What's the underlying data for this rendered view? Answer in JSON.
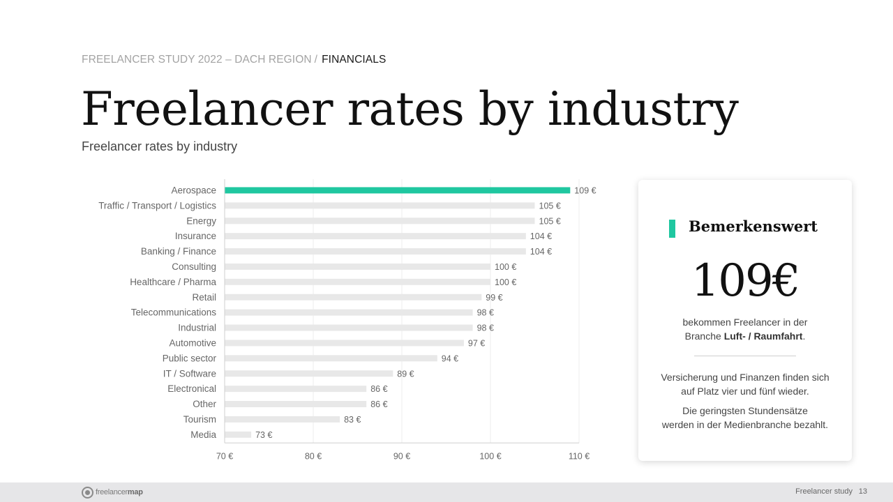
{
  "header": {
    "breadcrumb_study": "FREELANCER STUDY 2022 – DACH REGION",
    "breadcrumb_sep": "/",
    "breadcrumb_section": "FINANCIALS",
    "title": "Freelancer rates by industry",
    "subtitle": "Freelancer rates by industry"
  },
  "chart_data": {
    "type": "bar",
    "orientation": "horizontal",
    "categories": [
      "Aerospace",
      "Traffic / Transport / Logistics",
      "Energy",
      "Insurance",
      "Banking / Finance",
      "Consulting",
      "Healthcare / Pharma",
      "Retail",
      "Telecommunications",
      "Industrial",
      "Automotive",
      "Public sector",
      "IT / Software",
      "Electronical",
      "Other",
      "Tourism",
      "Media"
    ],
    "values": [
      109,
      105,
      105,
      104,
      104,
      100,
      100,
      99,
      98,
      98,
      97,
      94,
      89,
      86,
      86,
      83,
      73
    ],
    "value_labels": [
      "109 €",
      "105 €",
      "105 €",
      "104 €",
      "104 €",
      "100 €",
      "100 €",
      "99 €",
      "98 €",
      "98 €",
      "97 €",
      "94 €",
      "89 €",
      "86 €",
      "86 €",
      "83 €",
      "73 €"
    ],
    "xlim": [
      70,
      110
    ],
    "xticks": [
      70,
      80,
      90,
      100,
      110
    ],
    "xtick_labels": [
      "70 €",
      "80 €",
      "90 €",
      "100 €",
      "110 €"
    ],
    "grid": true,
    "highlight_index": 0,
    "colors": {
      "highlight": "#1fc7a0",
      "bar": "#e8e8e8",
      "grid": "#ececec",
      "axis": "#cfcfcf",
      "label": "#666666",
      "value": "#666666"
    }
  },
  "card": {
    "heading": "Bemerkenswert",
    "value": "109€",
    "desc_line1": "bekommen Freelancer in der",
    "desc_pre": "Branche ",
    "desc_bold": "Luft- / Raumfahrt",
    "desc_post": ".",
    "note1_line1": "Versicherung und Finanzen finden sich",
    "note1_line2": "auf Platz vier und fünf wieder.",
    "note2_line1": "Die geringsten Stundensätze",
    "note2_line2": "werden in der Medienbranche bezahlt.",
    "accent_color": "#1fc7a0"
  },
  "footer": {
    "logo_light": "freelancer",
    "logo_bold": "map",
    "label": "Freelancer study",
    "page": "13"
  }
}
